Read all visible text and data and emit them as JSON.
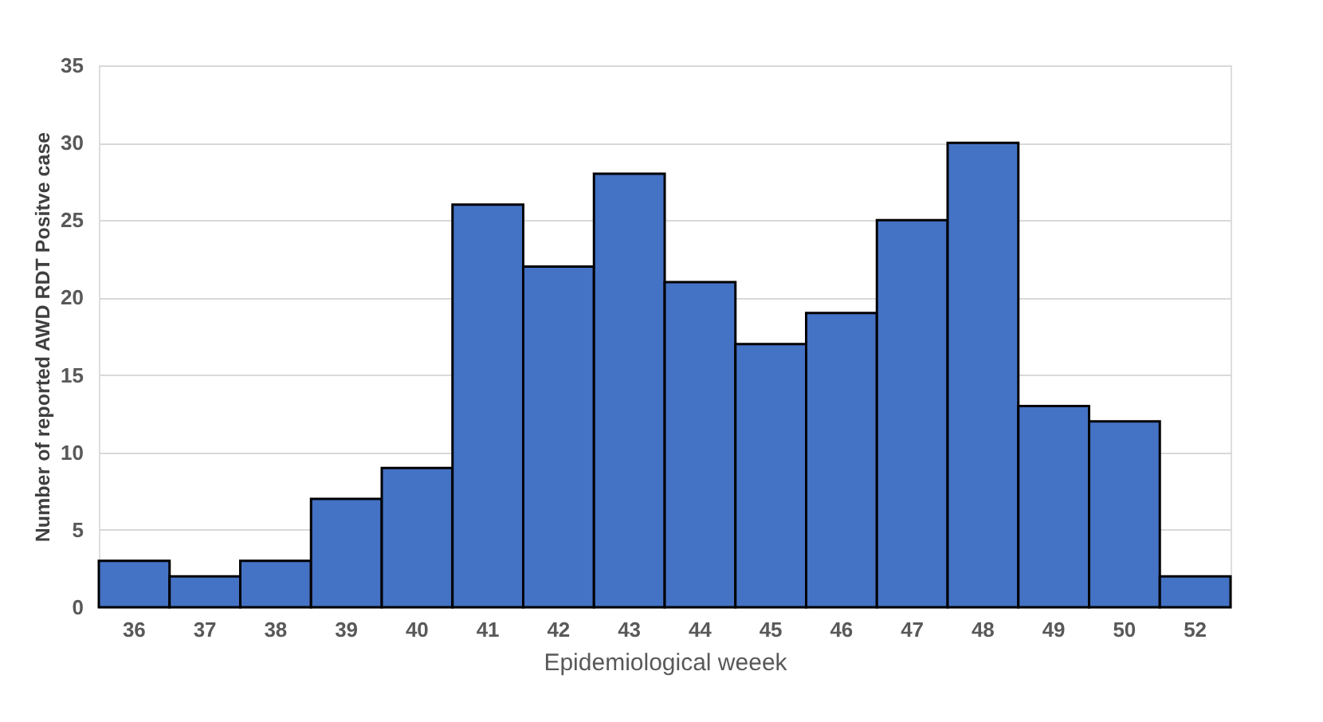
{
  "chart_data": {
    "type": "bar",
    "xlabel": "Epidemiological weeek",
    "ylabel": "Number of reported AWD RDT Positve case",
    "categories": [
      "36",
      "37",
      "38",
      "39",
      "40",
      "41",
      "42",
      "43",
      "44",
      "45",
      "46",
      "47",
      "48",
      "49",
      "50",
      "52"
    ],
    "values": [
      3,
      2,
      3,
      7,
      9,
      26,
      22,
      28,
      21,
      17,
      19,
      25,
      30,
      13,
      12,
      2
    ],
    "color": "#4472c4",
    "ylim": [
      0,
      35
    ],
    "yticks": [
      0,
      5,
      10,
      15,
      20,
      25,
      30,
      35
    ],
    "grid": "y"
  }
}
